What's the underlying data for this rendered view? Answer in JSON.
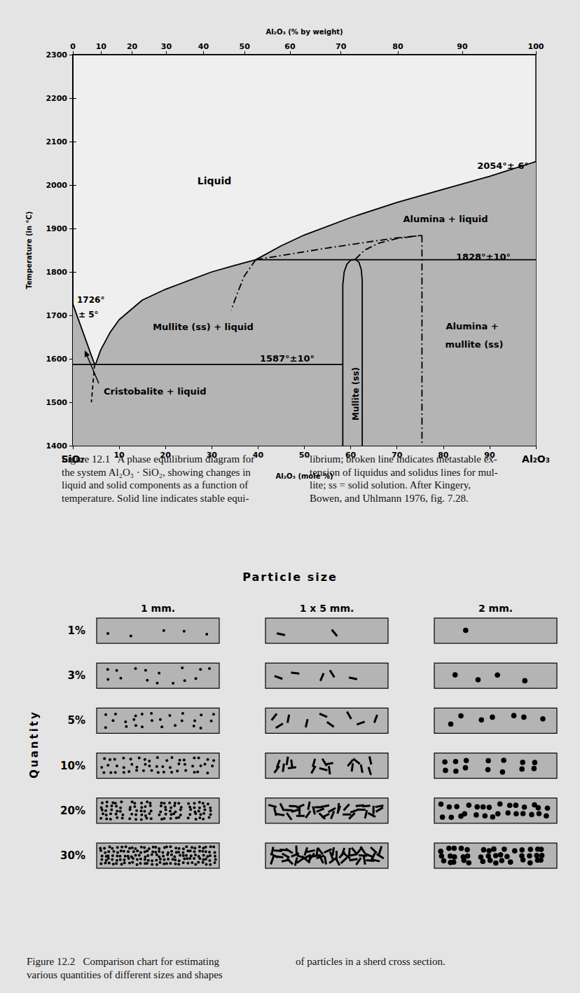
{
  "chart_data": {
    "type": "line",
    "x_label": "Al₂O₃ (mole %)",
    "x2_label": "Al₂O₃ (% by weight)",
    "y_label": "Temperature (in °C)",
    "xlim": [
      0,
      100
    ],
    "xticks": [
      {
        "value": 0,
        "label": "SiO₂"
      },
      10,
      20,
      30,
      40,
      50,
      60,
      70,
      80,
      90,
      {
        "value": 100,
        "label": "Al₂O₃"
      }
    ],
    "x2ticks": [
      0,
      {
        "value": 6.1,
        "label": "10"
      },
      {
        "value": 12.8,
        "label": "20"
      },
      {
        "value": 20.2,
        "label": "30"
      },
      {
        "value": 28.2,
        "label": "40"
      },
      {
        "value": 37.1,
        "label": "50"
      },
      {
        "value": 46.9,
        "label": "60"
      },
      {
        "value": 57.9,
        "label": "70"
      },
      {
        "value": 70.2,
        "label": "80"
      },
      {
        "value": 84.1,
        "label": "90"
      },
      100
    ],
    "ylim": [
      1400,
      2300
    ],
    "yticks": [
      1400,
      1500,
      1600,
      1700,
      1800,
      1900,
      2000,
      2100,
      2200,
      2300
    ],
    "grid": false,
    "series": [
      {
        "type": "area",
        "color": "#b4b4b4",
        "line_style": "solid",
        "x": [
          0,
          4.7,
          5,
          6,
          8,
          10,
          15,
          20,
          25,
          30,
          35,
          39.5,
          45,
          50,
          60,
          70,
          80,
          90,
          100
        ],
        "values": [
          1726,
          1587,
          1590,
          1620,
          1660,
          1690,
          1735,
          1760,
          1780,
          1800,
          1815,
          1828,
          1860,
          1885,
          1925,
          1960,
          1990,
          2020,
          2054
        ]
      },
      {
        "color": "#000000",
        "line_style": "solid",
        "x": [
          0,
          58.3
        ],
        "values": [
          1587,
          1587
        ]
      },
      {
        "color": "#000000",
        "line_style": "solid",
        "x": [
          39.5,
          100
        ],
        "values": [
          1828,
          1828
        ]
      },
      {
        "color": "#000000",
        "line_style": "solid",
        "x": [
          58.3,
          58.3,
          58.6,
          59.2,
          60,
          61,
          61.8,
          62.3,
          62.5,
          62.5
        ],
        "values": [
          1400,
          1770,
          1800,
          1818,
          1827,
          1829,
          1822,
          1805,
          1780,
          1400
        ]
      },
      {
        "color": "#000000",
        "line_style": "dashdot",
        "x": [
          39.5,
          37,
          35.5,
          34.2
        ],
        "values": [
          1828,
          1790,
          1750,
          1712
        ]
      },
      {
        "color": "#000000",
        "line_style": "dashdot",
        "x": [
          39.5,
          55,
          69,
          75.4
        ],
        "values": [
          1828,
          1855,
          1877,
          1884
        ]
      },
      {
        "color": "#000000",
        "line_style": "dashdot",
        "x": [
          61,
          63,
          66,
          70,
          75.4
        ],
        "values": [
          1829,
          1850,
          1866,
          1877,
          1884
        ]
      },
      {
        "color": "#000000",
        "line_style": "dashdot",
        "x": [
          75.4,
          75.4
        ],
        "values": [
          1884,
          1400
        ]
      },
      {
        "color": "#000000",
        "line_style": "dashed",
        "x": [
          4.7,
          4.0
        ],
        "values": [
          1587,
          1500
        ]
      }
    ],
    "annotations": [
      "Liquid",
      "Alumina + liquid",
      "2054°± 6°",
      "1828°±10°",
      "1726°",
      "± 5°",
      "Mullite (ss) + liquid",
      "1587°±10°",
      "Cristobalite + liquid",
      "Mullite (ss)",
      "Alumina +",
      "mullite (ss)"
    ],
    "caption_left": [
      "Figure 12.1   A phase equilibrium diagram for",
      "the system Al₂O₃ · SiO₂, showing changes in",
      "liquid and solid components as a function of",
      "temperature. Solid line indicates stable equi-"
    ],
    "caption_right": [
      "librium; broken line indicates metastable ex-",
      "tension of liquidus and solidus lines for mul-",
      "lite; ss = solid solution. After Kingery,",
      "Bowen, and Uhlmann 1976, fig. 7.28."
    ]
  },
  "comparison_chart": {
    "title": "Particle size",
    "quantity_label": "Quantity",
    "sizes": [
      {
        "label": "1 mm.",
        "marker": "circle"
      },
      {
        "label": "1 x 5 mm.",
        "marker": "dash"
      },
      {
        "label": "2 mm.",
        "marker": "circle"
      }
    ],
    "quantities": [
      {
        "value": 1,
        "label": "1%"
      },
      {
        "value": 3,
        "label": "3%"
      },
      {
        "value": 5,
        "label": "5%"
      },
      {
        "value": 10,
        "label": "10%"
      },
      {
        "value": 20,
        "label": "20%"
      },
      {
        "value": 30,
        "label": "30%"
      }
    ],
    "caption_left": [
      "Figure 12.2   Comparison chart for estimating",
      "various quantities of different sizes and shapes"
    ],
    "caption_right": [
      "of particles in a sherd cross section."
    ]
  }
}
